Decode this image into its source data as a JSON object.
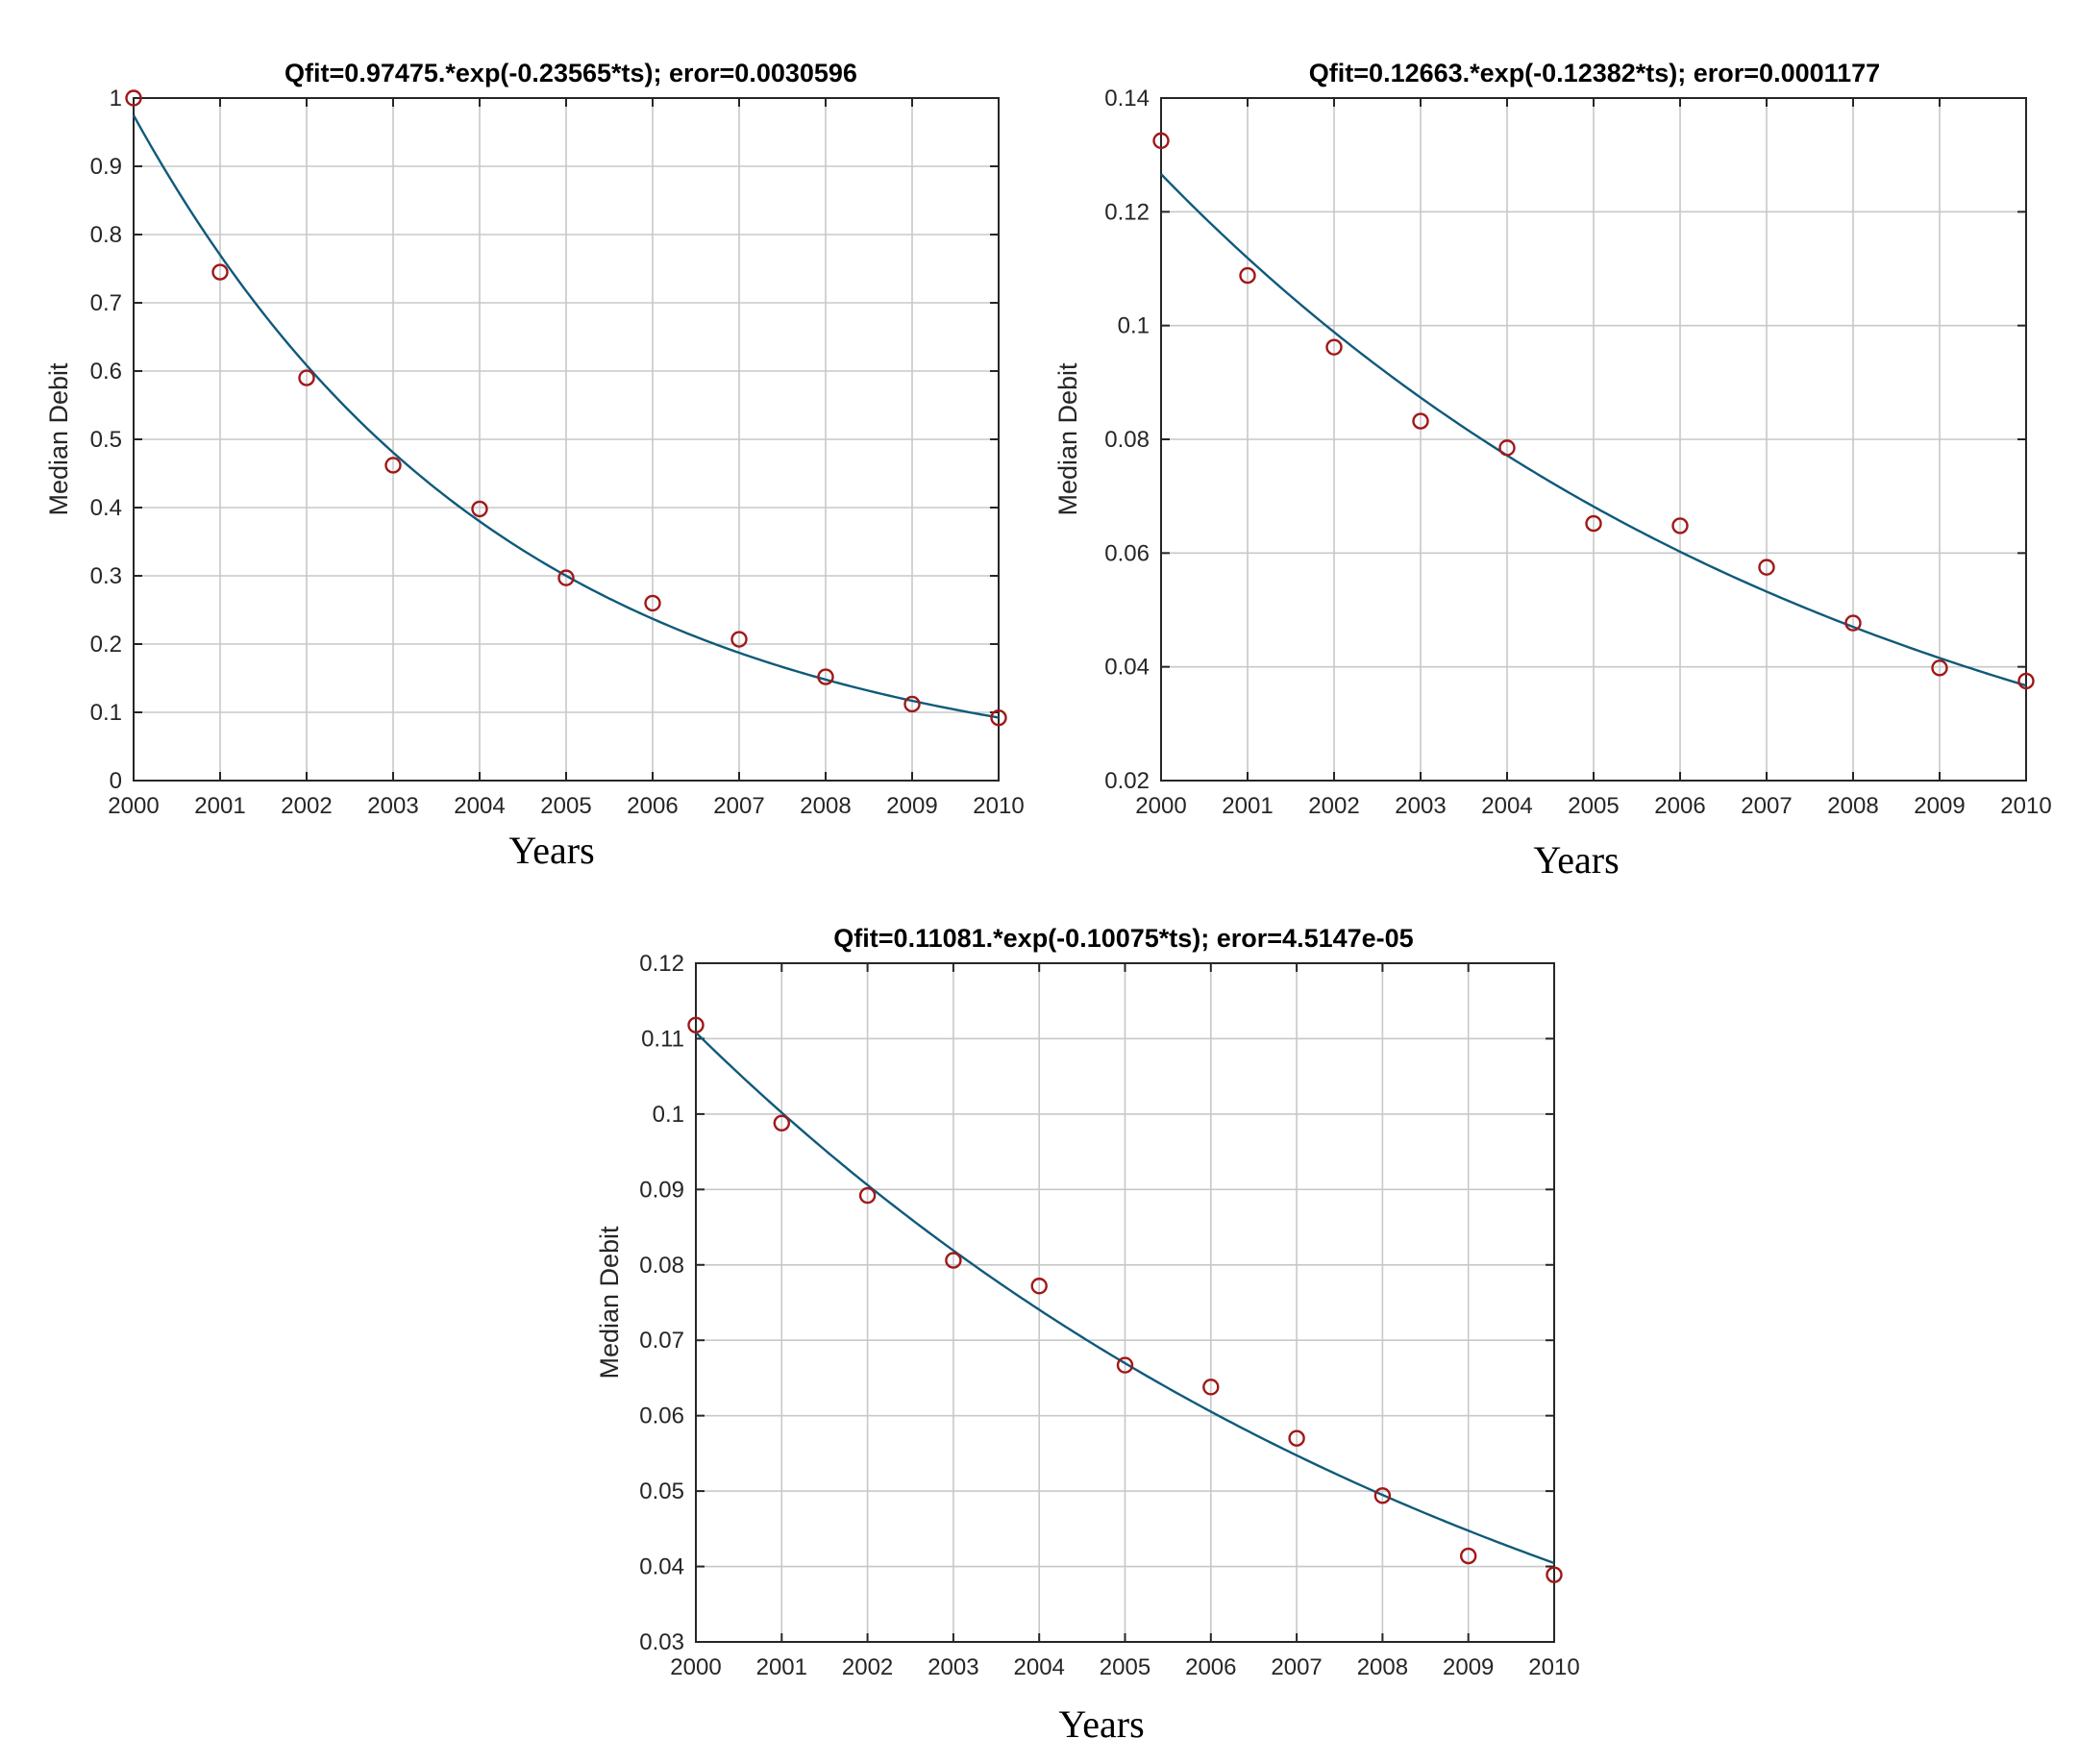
{
  "colors": {
    "fit_line": "#0f5a7a",
    "data_points": "#a01818"
  },
  "chart_data": [
    {
      "type": "scatter",
      "title": "Qfit=0.97475.*exp(-0.23565*ts);  eror=0.0030596",
      "xlabel": "Years",
      "ylabel": "Median Debit",
      "xlim": [
        2000,
        2010
      ],
      "ylim": [
        0,
        1
      ],
      "grid": true,
      "x_ticks": [
        2000,
        2001,
        2002,
        2003,
        2004,
        2005,
        2006,
        2007,
        2008,
        2009,
        2010
      ],
      "y_ticks": [
        0,
        0.1,
        0.2,
        0.3,
        0.4,
        0.5,
        0.6,
        0.7,
        0.8,
        0.9,
        1
      ],
      "y_tick_labels": [
        "0",
        "0.1",
        "0.2",
        "0.3",
        "0.4",
        "0.5",
        "0.6",
        "0.7",
        "0.8",
        "0.9",
        "1"
      ],
      "series": [
        {
          "type": "scatter",
          "marker": "circle",
          "x": [
            2000,
            2001,
            2002,
            2003,
            2004,
            2005,
            2006,
            2007,
            2008,
            2009,
            2010
          ],
          "values": [
            1.0,
            0.745,
            0.59,
            0.462,
            0.398,
            0.297,
            0.26,
            0.207,
            0.152,
            0.112,
            0.092
          ]
        },
        {
          "type": "line",
          "fit": {
            "a": 0.97475,
            "b": -0.23565
          }
        }
      ]
    },
    {
      "type": "scatter",
      "title": "Qfit=0.12663.*exp(-0.12382*ts);  eror=0.0001177",
      "xlabel": "Years",
      "ylabel": "Median Debit",
      "xlim": [
        2000,
        2010
      ],
      "ylim": [
        0.02,
        0.14
      ],
      "grid": true,
      "x_ticks": [
        2000,
        2001,
        2002,
        2003,
        2004,
        2005,
        2006,
        2007,
        2008,
        2009,
        2010
      ],
      "y_ticks": [
        0.02,
        0.04,
        0.06,
        0.08,
        0.1,
        0.12,
        0.14
      ],
      "y_tick_labels": [
        "0.02",
        "0.04",
        "0.06",
        "0.08",
        "0.1",
        "0.12",
        "0.14"
      ],
      "series": [
        {
          "type": "scatter",
          "marker": "circle",
          "x": [
            2000,
            2001,
            2002,
            2003,
            2004,
            2005,
            2006,
            2007,
            2008,
            2009,
            2010
          ],
          "values": [
            0.1325,
            0.1088,
            0.0962,
            0.0832,
            0.0785,
            0.0652,
            0.0648,
            0.0575,
            0.0477,
            0.0398,
            0.0375
          ]
        },
        {
          "type": "line",
          "fit": {
            "a": 0.12663,
            "b": -0.12382
          }
        }
      ]
    },
    {
      "type": "scatter",
      "title": "Qfit=0.11081.*exp(-0.10075*ts);  eror=4.5147e-05",
      "xlabel": "Years",
      "ylabel": "Median Debit",
      "xlim": [
        2000,
        2010
      ],
      "ylim": [
        0.03,
        0.12
      ],
      "grid": true,
      "x_ticks": [
        2000,
        2001,
        2002,
        2003,
        2004,
        2005,
        2006,
        2007,
        2008,
        2009,
        2010
      ],
      "y_ticks": [
        0.03,
        0.04,
        0.05,
        0.06,
        0.07,
        0.08,
        0.09,
        0.1,
        0.11,
        0.12
      ],
      "y_tick_labels": [
        "0.03",
        "0.04",
        "0.05",
        "0.06",
        "0.07",
        "0.08",
        "0.09",
        "0.1",
        "0.11",
        "0.12"
      ],
      "series": [
        {
          "type": "scatter",
          "marker": "circle",
          "x": [
            2000,
            2001,
            2002,
            2003,
            2004,
            2005,
            2006,
            2007,
            2008,
            2009,
            2010
          ],
          "values": [
            0.1118,
            0.0988,
            0.0892,
            0.0806,
            0.0772,
            0.0667,
            0.0638,
            0.057,
            0.0494,
            0.0414,
            0.0389
          ]
        },
        {
          "type": "line",
          "fit": {
            "a": 0.11081,
            "b": -0.10075
          }
        }
      ]
    }
  ]
}
